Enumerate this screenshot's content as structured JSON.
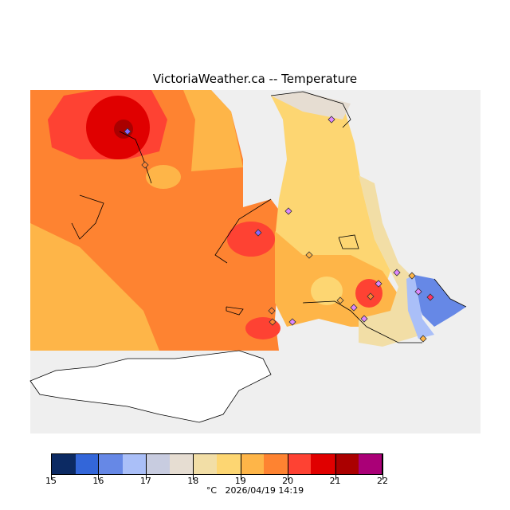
{
  "title": "VictoriaWeather.ca  --  Temperature",
  "colorbar": {
    "colors": [
      "#0c2a63",
      "#3366d9",
      "#6688e6",
      "#aabff8",
      "#c8cce0",
      "#e6ddd2",
      "#f2dea6",
      "#fdd672",
      "#feb548",
      "#fe8331",
      "#fe4233",
      "#e00000",
      "#aa0000",
      "#aa0077"
    ],
    "ticks": [
      "15",
      "16",
      "17",
      "18",
      "19",
      "20",
      "21",
      "22"
    ],
    "unit": "°C",
    "timestamp": "2026/04/19 14:19"
  }
}
